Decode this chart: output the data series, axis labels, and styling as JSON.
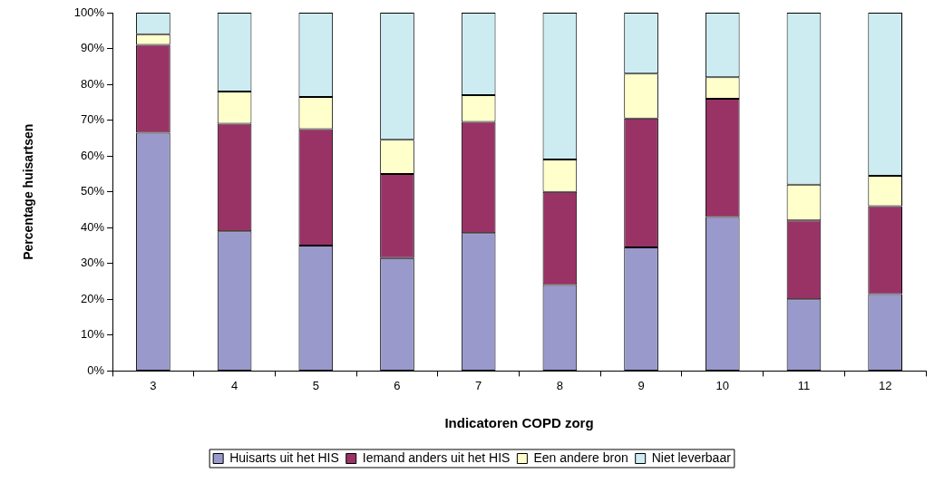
{
  "chart_data": {
    "type": "bar",
    "stacked": true,
    "xlabel": "Indicatoren COPD zorg",
    "ylabel": "Percentage huisartsen",
    "categories": [
      "3",
      "4",
      "5",
      "6",
      "7",
      "8",
      "9",
      "10",
      "11",
      "12"
    ],
    "series": [
      {
        "name": "Huisarts uit het HIS",
        "color": "#9999cc",
        "values": [
          66.5,
          39,
          35,
          31.5,
          38.5,
          24,
          34.5,
          43,
          20,
          21.5
        ]
      },
      {
        "name": "Iemand anders uit het HIS",
        "color": "#993366",
        "values": [
          24.5,
          30,
          32.5,
          23.5,
          31,
          26,
          36,
          33,
          22,
          24.5
        ]
      },
      {
        "name": "Een andere bron",
        "color": "#ffffcc",
        "values": [
          3,
          9,
          9,
          9.5,
          7.5,
          9,
          12.5,
          6,
          10,
          8.5
        ]
      },
      {
        "name": "Niet leverbaar",
        "color": "#ccecf2",
        "values": [
          6,
          22,
          23.5,
          35.5,
          23,
          41,
          17,
          18,
          48,
          45.5
        ]
      }
    ],
    "ylim": [
      0,
      100
    ],
    "yticks": [
      {
        "value": 0,
        "label": "0%"
      },
      {
        "value": 10,
        "label": "10%"
      },
      {
        "value": 20,
        "label": "20%"
      },
      {
        "value": 30,
        "label": "30%"
      },
      {
        "value": 40,
        "label": "40%"
      },
      {
        "value": 50,
        "label": "50%"
      },
      {
        "value": 60,
        "label": "60%"
      },
      {
        "value": 70,
        "label": "70%"
      },
      {
        "value": 80,
        "label": "80%"
      },
      {
        "value": 90,
        "label": "90%"
      },
      {
        "value": 100,
        "label": "100%"
      }
    ],
    "grid": false,
    "legend": "bottom"
  }
}
